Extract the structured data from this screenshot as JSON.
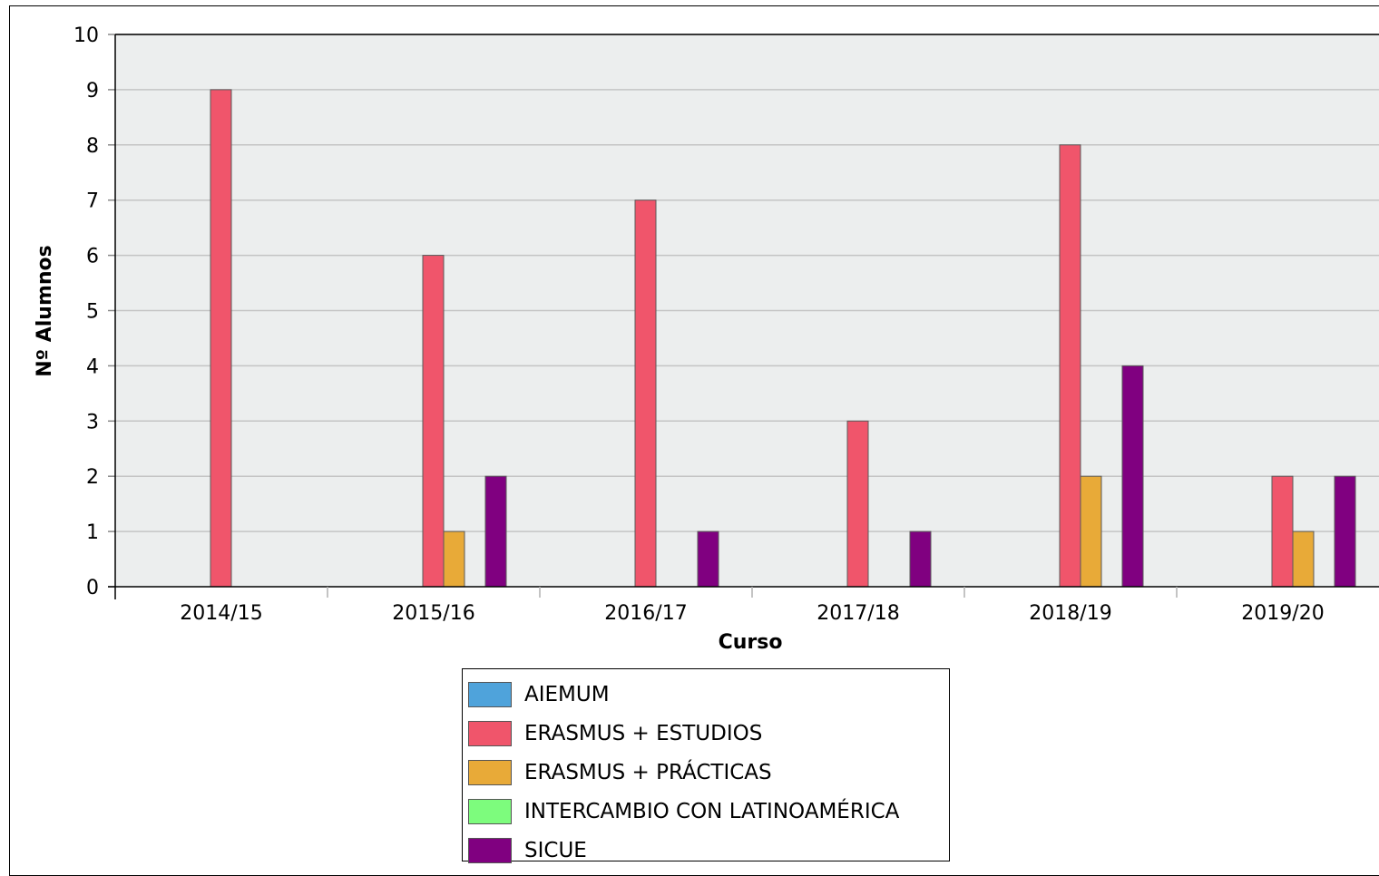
{
  "chart_data": {
    "type": "bar",
    "title": "",
    "xlabel": "Curso",
    "ylabel": "Nº Alumnos",
    "ylim": [
      0,
      10
    ],
    "yticks": [
      "0",
      "1",
      "2",
      "3",
      "4",
      "5",
      "6",
      "7",
      "8",
      "9",
      "10"
    ],
    "grid": true,
    "legend_position": "bottom",
    "categories": [
      "2014/15",
      "2015/16",
      "2016/17",
      "2017/18",
      "2018/19",
      "2019/20"
    ],
    "series": [
      {
        "name": "AIEMUM",
        "color": "#4fa3db",
        "values": [
          0,
          0,
          0,
          0,
          0,
          0
        ]
      },
      {
        "name": "ERASMUS + ESTUDIOS",
        "color": "#f0556b",
        "values": [
          9,
          6,
          7,
          3,
          8,
          2
        ]
      },
      {
        "name": "ERASMUS + PRÁCTICAS",
        "color": "#e8aa38",
        "values": [
          0,
          1,
          0,
          0,
          2,
          1
        ]
      },
      {
        "name": "INTERCAMBIO CON LATINOAMÉRICA",
        "color": "#7dfc7d",
        "values": [
          0,
          0,
          0,
          0,
          0,
          0
        ]
      },
      {
        "name": "SICUE",
        "color": "#800080",
        "values": [
          0,
          2,
          1,
          1,
          4,
          2
        ]
      }
    ],
    "plot_background": "#eceeee"
  }
}
